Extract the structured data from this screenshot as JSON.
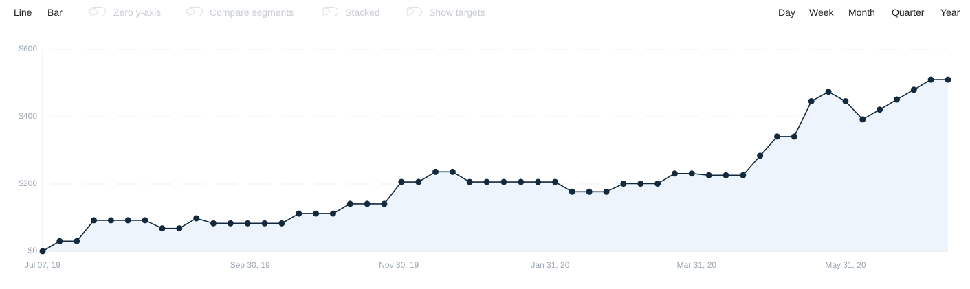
{
  "toolbar": {
    "chart_types": [
      "Line",
      "Bar"
    ],
    "toggles": [
      "Zero y-axis",
      "Compare segments",
      "Stacked",
      "Show targets"
    ],
    "periods": [
      "Day",
      "Week",
      "Month",
      "Quarter",
      "Year"
    ]
  },
  "chart_data": {
    "type": "line",
    "x": [
      "2019-07-07",
      "2019-07-14",
      "2019-07-21",
      "2019-07-28",
      "2019-08-04",
      "2019-08-11",
      "2019-08-18",
      "2019-08-25",
      "2019-09-01",
      "2019-09-08",
      "2019-09-15",
      "2019-09-22",
      "2019-09-29",
      "2019-10-06",
      "2019-10-13",
      "2019-10-20",
      "2019-10-27",
      "2019-11-03",
      "2019-11-10",
      "2019-11-17",
      "2019-11-24",
      "2019-12-01",
      "2019-12-08",
      "2019-12-15",
      "2019-12-22",
      "2019-12-29",
      "2020-01-05",
      "2020-01-12",
      "2020-01-19",
      "2020-01-26",
      "2020-02-02",
      "2020-02-09",
      "2020-02-16",
      "2020-02-23",
      "2020-03-01",
      "2020-03-08",
      "2020-03-15",
      "2020-03-22",
      "2020-03-29",
      "2020-04-05",
      "2020-04-12",
      "2020-04-19",
      "2020-04-26",
      "2020-05-03",
      "2020-05-10",
      "2020-05-17",
      "2020-05-24",
      "2020-05-31",
      "2020-06-07",
      "2020-06-14",
      "2020-06-21",
      "2020-06-28",
      "2020-07-05",
      "2020-07-12"
    ],
    "values": [
      0,
      30,
      30,
      92,
      92,
      92,
      92,
      68,
      68,
      98,
      83,
      83,
      83,
      83,
      83,
      112,
      112,
      112,
      141,
      141,
      141,
      206,
      206,
      236,
      236,
      206,
      206,
      206,
      206,
      206,
      206,
      177,
      177,
      177,
      201,
      201,
      201,
      231,
      231,
      226,
      226,
      226,
      284,
      341,
      341,
      446,
      474,
      446,
      392,
      421,
      451,
      480,
      510,
      510
    ],
    "color": "#13293d",
    "area_color": "#eef4fc",
    "xlim": [
      "2019-07-07",
      "2020-07-12"
    ],
    "xticks": [
      {
        "value": "2019-07-07",
        "label": "Jul 07, 19"
      },
      {
        "value": "2019-09-30",
        "label": "Sep 30, 19"
      },
      {
        "value": "2019-11-30",
        "label": "Nov 30, 19"
      },
      {
        "value": "2020-01-31",
        "label": "Jan 31, 20"
      },
      {
        "value": "2020-03-31",
        "label": "Mar 31, 20"
      },
      {
        "value": "2020-05-31",
        "label": "May 31, 20"
      }
    ],
    "ylim": [
      0,
      600
    ],
    "yticks": [
      {
        "value": 0,
        "label": "$0"
      },
      {
        "value": 200,
        "label": "$200"
      },
      {
        "value": 400,
        "label": "$400"
      },
      {
        "value": 600,
        "label": "$600"
      }
    ],
    "grid": true
  }
}
